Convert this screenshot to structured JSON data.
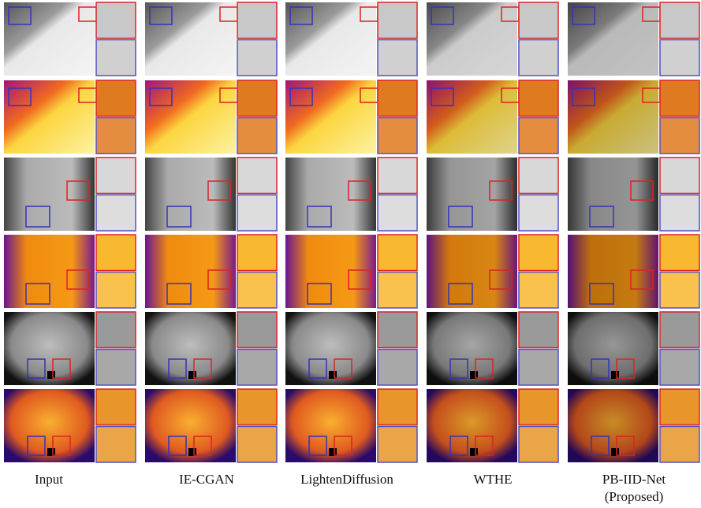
{
  "figure": {
    "columns": [
      "Input",
      "IE-CGAN",
      "LightenDiffusion",
      "WTHE",
      "PB-IID-Net (Proposed)"
    ]
  }
}
